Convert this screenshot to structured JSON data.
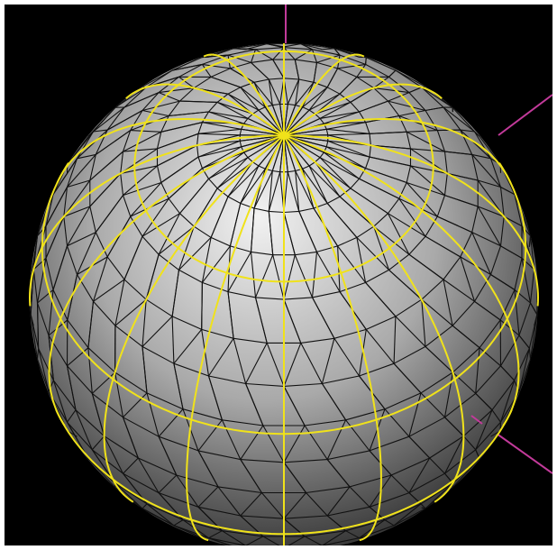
{
  "scene": {
    "description_free": true,
    "background_color": "#000000",
    "frame_color": "#ffffff",
    "sphere": {
      "shading_light": "#f2f2f2",
      "shading_mid": "#a9a9a9",
      "shading_dark": "#3a3a3a",
      "mesh_line_color": "#111111",
      "mesh_type": "triangulated-icosphere"
    },
    "grid_lines": {
      "color": "#f0e21a",
      "parallels_count": 3,
      "meridians_count": 8
    },
    "axes": {
      "color": "#c23a9a",
      "count": 3
    }
  }
}
